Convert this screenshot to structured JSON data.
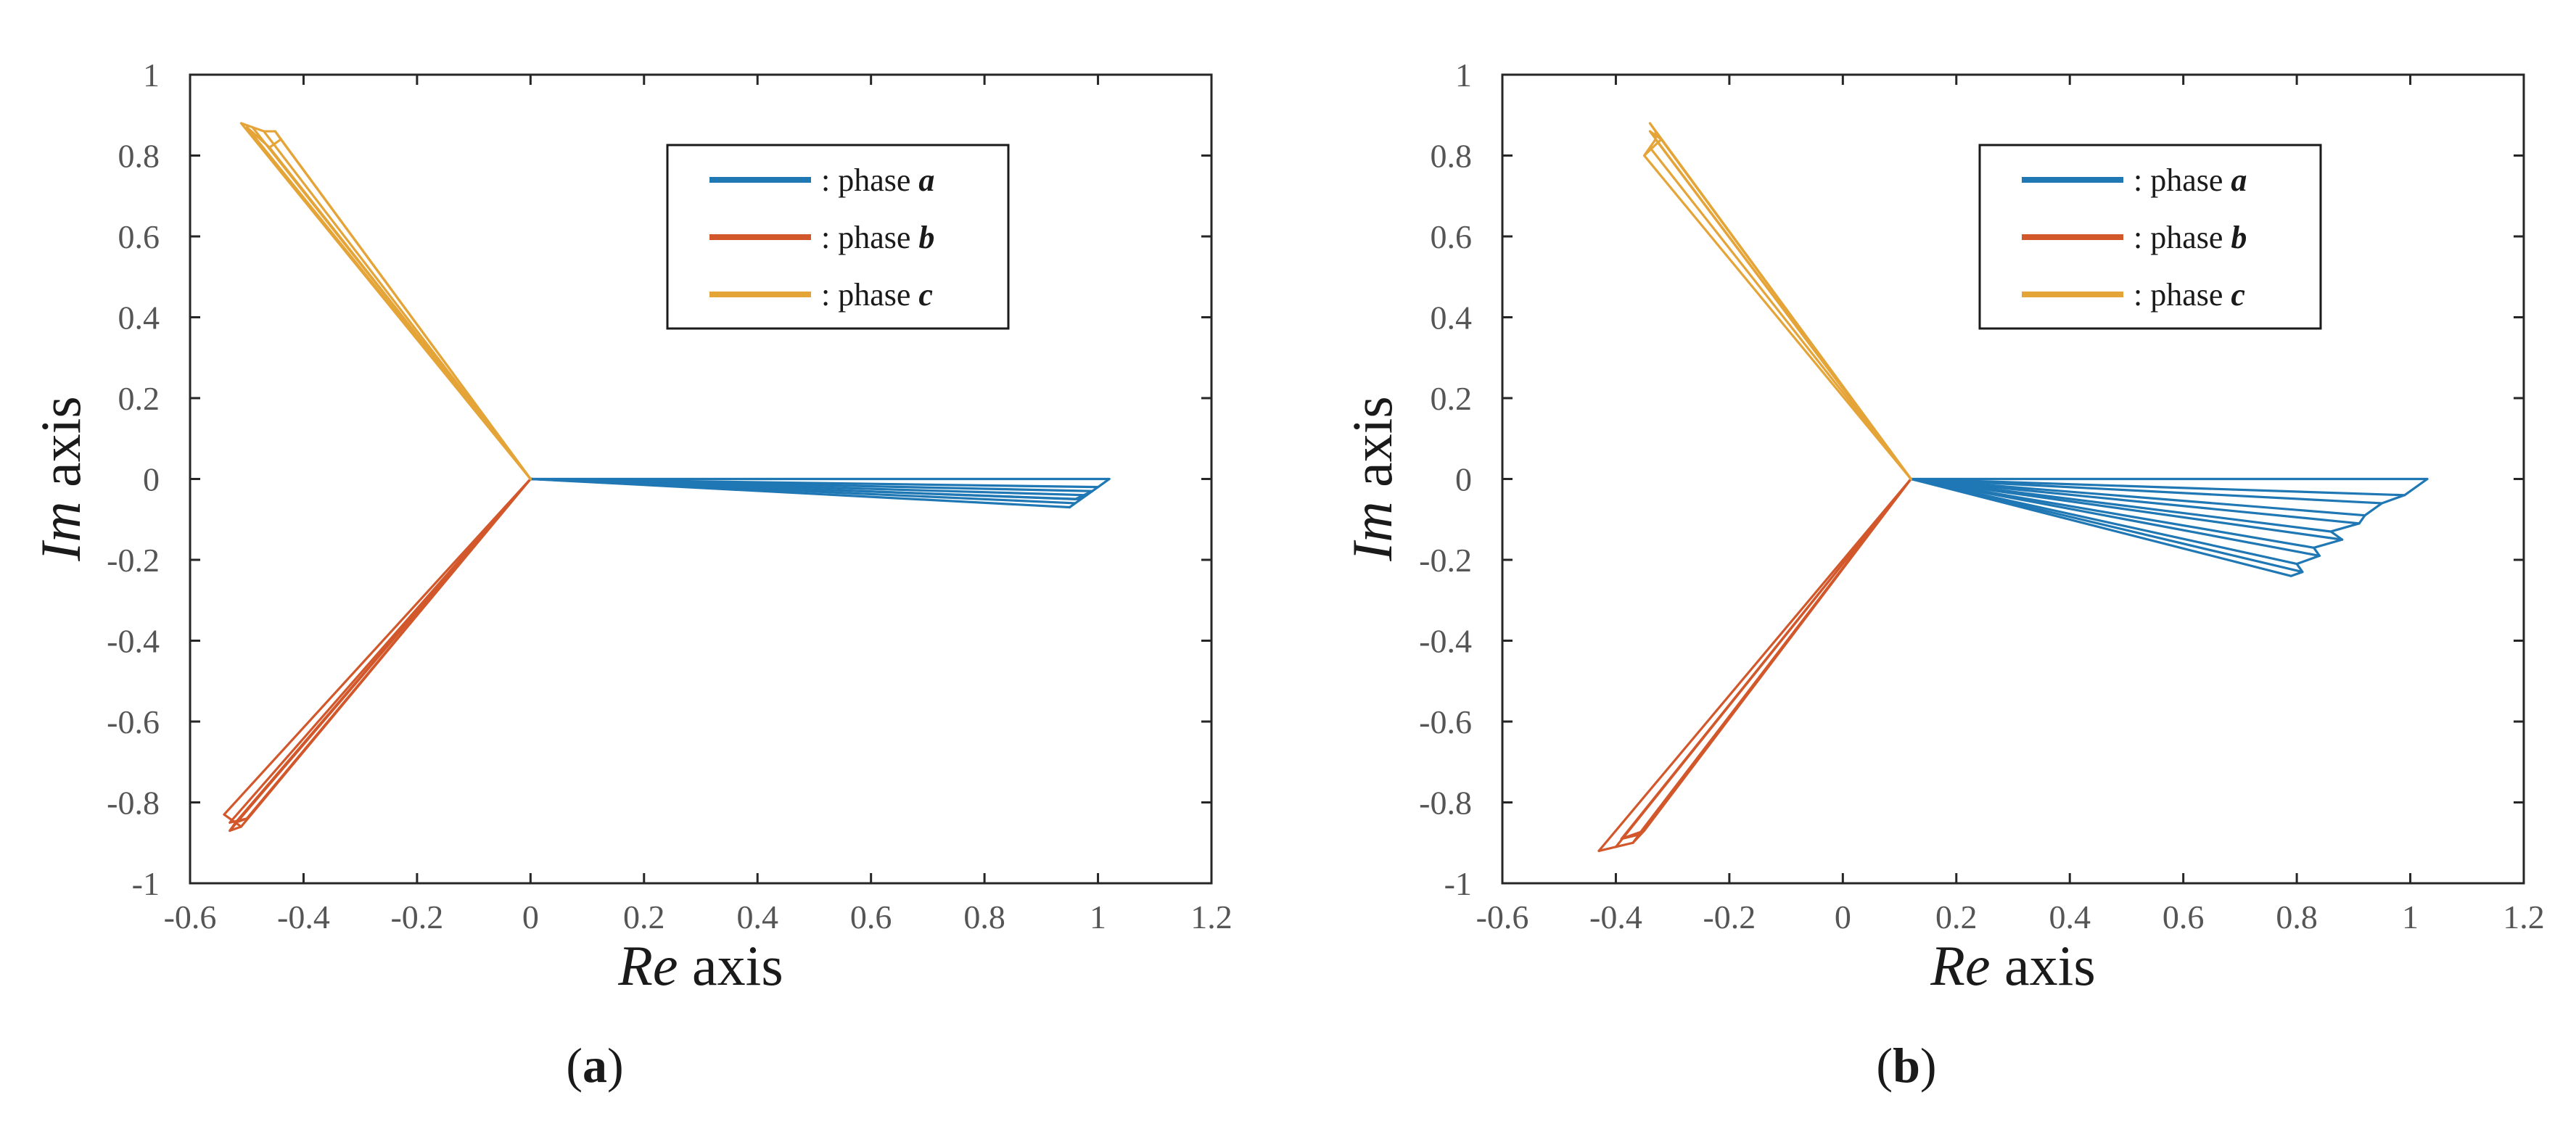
{
  "colors": {
    "phase_a": "#1F77B4",
    "phase_b": "#D2572B",
    "phase_c": "#E5A437"
  },
  "chart_data": [
    {
      "panel": "(a)",
      "panel_label_open": "(",
      "panel_label_letter": "a",
      "panel_label_close": ")",
      "type": "line",
      "xlabel_italic": "Re",
      "xlabel_rest": " axis",
      "ylabel_italic": "Im",
      "ylabel_rest": " axis",
      "xlim": [
        -0.6,
        1.2
      ],
      "ylim": [
        -1,
        1
      ],
      "xticks": [
        "-0.6",
        "-0.4",
        "-0.2",
        "0",
        "0.2",
        "0.4",
        "0.6",
        "0.8",
        "1",
        "1.2"
      ],
      "yticks": [
        "1",
        "0.8",
        "0.6",
        "0.4",
        "0.2",
        "0",
        "-0.2",
        "-0.4",
        "-0.6",
        "-0.8",
        "-1"
      ],
      "legend": [
        {
          "prefix": ": phase ",
          "letter": "a"
        },
        {
          "prefix": ": phase ",
          "letter": "b"
        },
        {
          "prefix": ": phase ",
          "letter": "c"
        }
      ],
      "origin": [
        0,
        0
      ],
      "series": [
        {
          "name": "phase a",
          "tips": [
            [
              1.02,
              0.0
            ],
            [
              1.0,
              -0.02
            ],
            [
              0.98,
              -0.04
            ],
            [
              0.96,
              -0.06
            ],
            [
              0.95,
              -0.07
            ],
            [
              0.97,
              -0.05
            ],
            [
              0.99,
              -0.03
            ],
            [
              0.96,
              -0.05
            ]
          ]
        },
        {
          "name": "phase b",
          "tips": [
            [
              -0.54,
              -0.83
            ],
            [
              -0.51,
              -0.86
            ],
            [
              -0.53,
              -0.87
            ],
            [
              -0.52,
              -0.85
            ],
            [
              -0.5,
              -0.84
            ],
            [
              -0.53,
              -0.85
            ]
          ]
        },
        {
          "name": "phase c",
          "tips": [
            [
              -0.51,
              0.88
            ],
            [
              -0.49,
              0.87
            ],
            [
              -0.47,
              0.86
            ],
            [
              -0.45,
              0.86
            ],
            [
              -0.44,
              0.84
            ],
            [
              -0.46,
              0.82
            ],
            [
              -0.5,
              0.87
            ]
          ]
        }
      ]
    },
    {
      "panel": "(b)",
      "panel_label_open": "(",
      "panel_label_letter": "b",
      "panel_label_close": ")",
      "type": "line",
      "xlabel_italic": "Re",
      "xlabel_rest": " axis",
      "ylabel_italic": "Im",
      "ylabel_rest": " axis",
      "xlim": [
        -0.6,
        1.2
      ],
      "ylim": [
        -1,
        1
      ],
      "xticks": [
        "-0.6",
        "-0.4",
        "-0.2",
        "0",
        "0.2",
        "0.4",
        "0.6",
        "0.8",
        "1",
        "1.2"
      ],
      "yticks": [
        "1",
        "0.8",
        "0.6",
        "0.4",
        "0.2",
        "0",
        "-0.2",
        "-0.4",
        "-0.6",
        "-0.8",
        "-1"
      ],
      "legend": [
        {
          "prefix": ": phase ",
          "letter": "a"
        },
        {
          "prefix": ": phase ",
          "letter": "b"
        },
        {
          "prefix": ": phase ",
          "letter": "c"
        }
      ],
      "origin": [
        0.12,
        0
      ],
      "series": [
        {
          "name": "phase a",
          "tips": [
            [
              1.03,
              0.0
            ],
            [
              0.99,
              -0.04
            ],
            [
              0.95,
              -0.06
            ],
            [
              0.92,
              -0.09
            ],
            [
              0.91,
              -0.11
            ],
            [
              0.86,
              -0.13
            ],
            [
              0.88,
              -0.15
            ],
            [
              0.83,
              -0.17
            ],
            [
              0.84,
              -0.19
            ],
            [
              0.8,
              -0.21
            ],
            [
              0.81,
              -0.23
            ],
            [
              0.79,
              -0.24
            ]
          ]
        },
        {
          "name": "phase b",
          "tips": [
            [
              -0.43,
              -0.92
            ],
            [
              -0.4,
              -0.91
            ],
            [
              -0.37,
              -0.9
            ],
            [
              -0.35,
              -0.87
            ],
            [
              -0.39,
              -0.89
            ],
            [
              -0.36,
              -0.88
            ]
          ]
        },
        {
          "name": "phase c",
          "tips": [
            [
              -0.34,
              0.88
            ],
            [
              -0.33,
              0.86
            ],
            [
              -0.33,
              0.84
            ],
            [
              -0.34,
              0.82
            ],
            [
              -0.35,
              0.8
            ],
            [
              -0.32,
              0.84
            ],
            [
              -0.34,
              0.86
            ]
          ]
        }
      ]
    }
  ]
}
